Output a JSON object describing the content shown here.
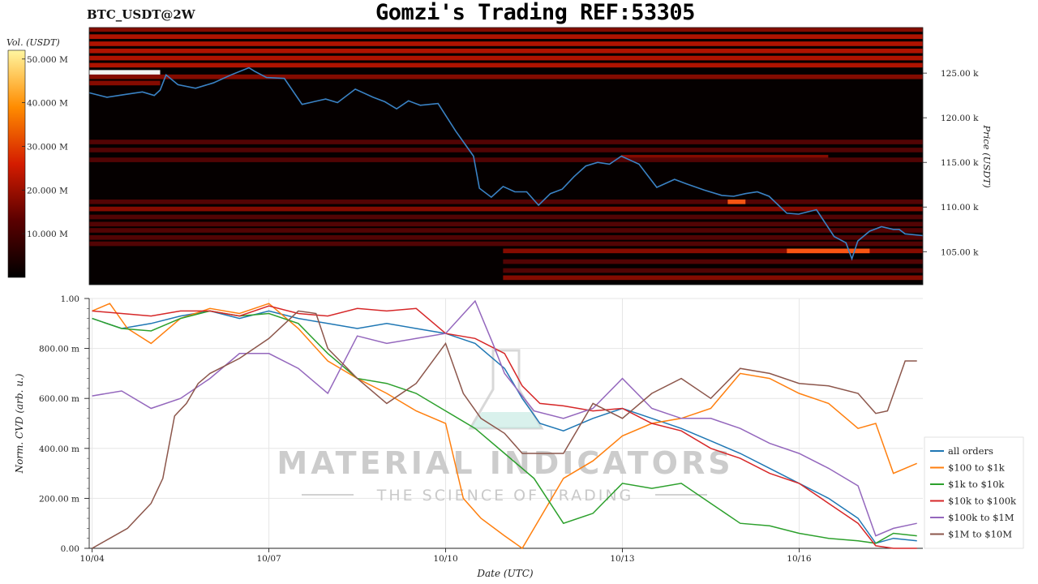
{
  "header": {
    "pair": "BTC_USDT@2W",
    "title": "Gomzi's Trading REF:53305"
  },
  "watermark": {
    "brand": "MATERIAL INDICATORS",
    "tagline": "THE SCIENCE OF TRADING"
  },
  "colors": {
    "heatmap_bg": "#050000",
    "heatmap_low": "#3a0000",
    "heatmap_mid": "#c81800",
    "heatmap_high": "#ff9a00",
    "price_line": "#3a82c4",
    "all_orders": "#1f77b4",
    "usd_100_1k": "#ff7f0e",
    "usd_1k_10k": "#2ca02c",
    "usd_10k_100k": "#d62728",
    "usd_100k_1m": "#9467bd",
    "usd_1m_10m": "#8c564b"
  },
  "chart_data": [
    {
      "type": "heatmap",
      "title": "BTC_USDT@2W",
      "ylabel": "Price (USDT)",
      "colorbar_label": "Vol. (USDT)",
      "colorbar_ticks": [
        "10.000 M",
        "20.000 M",
        "30.000 M",
        "40.000 M",
        "50.000 M"
      ],
      "colorbar_tick_values": [
        10,
        20,
        30,
        40,
        50
      ],
      "colorbar_range": [
        0,
        52
      ],
      "y_ticks": [
        "105.00 k",
        "110.00 k",
        "115.00 k",
        "120.00 k",
        "125.00 k"
      ],
      "y_tick_values": [
        105000,
        110000,
        115000,
        120000,
        125000
      ],
      "ylim": [
        101300,
        130100
      ],
      "x_range": [
        0,
        14.1
      ],
      "price_series": {
        "x": [
          0,
          0.3,
          0.6,
          0.9,
          1.1,
          1.2,
          1.3,
          1.5,
          1.8,
          2.1,
          2.4,
          2.7,
          2.8,
          3.0,
          3.3,
          3.6,
          3.8,
          4.0,
          4.2,
          4.5,
          4.8,
          5.0,
          5.2,
          5.4,
          5.6,
          5.9,
          6.2,
          6.5,
          6.6,
          6.8,
          7.0,
          7.2,
          7.4,
          7.6,
          7.8,
          8.0,
          8.2,
          8.4,
          8.6,
          8.8,
          9.0,
          9.3,
          9.6,
          9.9,
          10.1,
          10.4,
          10.7,
          10.9,
          11.1,
          11.3,
          11.5,
          11.8,
          12.0,
          12.3,
          12.6,
          12.8,
          12.9,
          13.0,
          13.2,
          13.4,
          13.6,
          13.7,
          13.8,
          14.1
        ],
        "y": [
          122800,
          122300,
          122600,
          122900,
          122500,
          123100,
          124800,
          123700,
          123300,
          123900,
          124800,
          125600,
          125200,
          124500,
          124400,
          121500,
          121800,
          122100,
          121700,
          123200,
          122300,
          121800,
          121000,
          121900,
          121400,
          121600,
          118500,
          115700,
          112100,
          111100,
          112300,
          111700,
          111700,
          110200,
          111500,
          112000,
          113400,
          114600,
          115000,
          114800,
          115700,
          114800,
          112200,
          113100,
          112600,
          111900,
          111300,
          111200,
          111500,
          111700,
          111200,
          109300,
          109200,
          109700,
          106700,
          106000,
          104200,
          106200,
          107300,
          107800,
          107500,
          107500,
          107000,
          106800
        ]
      },
      "bands": [
        {
          "price": 129800,
          "x": [
            0,
            14.1
          ],
          "level": 0.5
        },
        {
          "price": 129000,
          "x": [
            0,
            14.1
          ],
          "level": 0.55
        },
        {
          "price": 128200,
          "x": [
            0,
            14.1
          ],
          "level": 0.6
        },
        {
          "price": 127400,
          "x": [
            0,
            14.1
          ],
          "level": 0.62
        },
        {
          "price": 126600,
          "x": [
            0,
            14.1
          ],
          "level": 0.58
        },
        {
          "price": 125800,
          "x": [
            0,
            14.1
          ],
          "level": 0.6
        },
        {
          "price": 125000,
          "x": [
            0,
            1.2
          ],
          "level": 1.0
        },
        {
          "price": 124500,
          "x": [
            0,
            14.1
          ],
          "level": 0.5
        },
        {
          "price": 123800,
          "x": [
            0,
            1.2
          ],
          "level": 0.5
        },
        {
          "price": 117200,
          "x": [
            0,
            14.1
          ],
          "level": 0.3
        },
        {
          "price": 116300,
          "x": [
            0,
            14.1
          ],
          "level": 0.28
        },
        {
          "price": 115500,
          "x": [
            9.0,
            12.5
          ],
          "level": 0.45
        },
        {
          "price": 115200,
          "x": [
            0,
            14.1
          ],
          "level": 0.28
        },
        {
          "price": 110500,
          "x": [
            0,
            14.1
          ],
          "level": 0.35
        },
        {
          "price": 109700,
          "x": [
            0,
            14.1
          ],
          "level": 0.4
        },
        {
          "price": 110500,
          "x": [
            10.8,
            11.1
          ],
          "level": 0.85
        },
        {
          "price": 108800,
          "x": [
            0,
            14.1
          ],
          "level": 0.35
        },
        {
          "price": 108000,
          "x": [
            0,
            14.1
          ],
          "level": 0.3
        },
        {
          "price": 107300,
          "x": [
            0,
            14.1
          ],
          "level": 0.28
        },
        {
          "price": 106500,
          "x": [
            0,
            14.1
          ],
          "level": 0.25
        },
        {
          "price": 105800,
          "x": [
            0,
            14.1
          ],
          "level": 0.28
        },
        {
          "price": 105000,
          "x": [
            7.0,
            14.1
          ],
          "level": 0.45
        },
        {
          "price": 105000,
          "x": [
            11.8,
            13.2
          ],
          "level": 0.9
        },
        {
          "price": 103800,
          "x": [
            7.0,
            14.1
          ],
          "level": 0.35
        },
        {
          "price": 102800,
          "x": [
            7.0,
            14.1
          ],
          "level": 0.3
        },
        {
          "price": 102000,
          "x": [
            7.0,
            14.1
          ],
          "level": 0.4
        }
      ]
    },
    {
      "type": "line",
      "xlabel": "Date (UTC)",
      "ylabel": "Norm. CVD (arb. u.)",
      "x_ticks": [
        "10/04",
        "10/07",
        "10/10",
        "10/13",
        "10/16"
      ],
      "x_tick_values": [
        0,
        3,
        6,
        9,
        12
      ],
      "xlim": [
        -0.05,
        14.1
      ],
      "y_ticks": [
        "0.00",
        "200.00 m",
        "400.00 m",
        "600.00 m",
        "800.00 m",
        "1.00"
      ],
      "y_tick_values": [
        0,
        0.2,
        0.4,
        0.6,
        0.8,
        1.0
      ],
      "ylim": [
        0,
        1.0
      ],
      "grid": true,
      "legend_position": "lower-right",
      "series": [
        {
          "name": "all orders",
          "x": [
            0,
            0.5,
            1.0,
            1.5,
            2.0,
            2.5,
            3.0,
            3.5,
            4.0,
            4.5,
            5.0,
            5.5,
            6.0,
            6.5,
            7.0,
            7.3,
            7.6,
            8.0,
            8.5,
            9.0,
            9.5,
            10.0,
            10.5,
            11.0,
            11.5,
            12.0,
            12.5,
            13.0,
            13.3,
            13.6,
            14.0
          ],
          "y": [
            0.92,
            0.88,
            0.9,
            0.93,
            0.95,
            0.92,
            0.95,
            0.92,
            0.9,
            0.88,
            0.9,
            0.88,
            0.86,
            0.82,
            0.72,
            0.6,
            0.5,
            0.47,
            0.52,
            0.56,
            0.52,
            0.48,
            0.43,
            0.38,
            0.32,
            0.26,
            0.2,
            0.12,
            0.02,
            0.04,
            0.03
          ]
        },
        {
          "name": "$100 to $1k",
          "x": [
            0,
            0.3,
            0.6,
            1.0,
            1.5,
            2.0,
            2.5,
            3.0,
            3.5,
            4.0,
            4.5,
            5.0,
            5.5,
            6.0,
            6.3,
            6.6,
            7.0,
            7.3,
            7.6,
            8.0,
            8.5,
            9.0,
            9.5,
            10.0,
            10.5,
            11.0,
            11.5,
            12.0,
            12.5,
            13.0,
            13.3,
            13.6,
            14.0
          ],
          "y": [
            0.95,
            0.98,
            0.88,
            0.82,
            0.92,
            0.96,
            0.94,
            0.98,
            0.88,
            0.75,
            0.68,
            0.62,
            0.55,
            0.5,
            0.2,
            0.12,
            0.05,
            0.0,
            0.12,
            0.28,
            0.35,
            0.45,
            0.5,
            0.52,
            0.56,
            0.7,
            0.68,
            0.62,
            0.58,
            0.48,
            0.5,
            0.3,
            0.34
          ]
        },
        {
          "name": "$1k to $10k",
          "x": [
            0,
            0.5,
            1.0,
            1.5,
            2.0,
            2.5,
            3.0,
            3.5,
            4.0,
            4.5,
            5.0,
            5.5,
            6.0,
            6.5,
            7.0,
            7.5,
            8.0,
            8.5,
            9.0,
            9.5,
            10.0,
            10.5,
            11.0,
            11.5,
            12.0,
            12.5,
            13.0,
            13.3,
            13.6,
            14.0
          ],
          "y": [
            0.92,
            0.88,
            0.87,
            0.92,
            0.95,
            0.93,
            0.94,
            0.9,
            0.78,
            0.68,
            0.66,
            0.62,
            0.55,
            0.48,
            0.38,
            0.28,
            0.1,
            0.14,
            0.26,
            0.24,
            0.26,
            0.18,
            0.1,
            0.09,
            0.06,
            0.04,
            0.03,
            0.02,
            0.06,
            0.05
          ]
        },
        {
          "name": "$10k to $100k",
          "x": [
            0,
            0.5,
            1.0,
            1.5,
            2.0,
            2.5,
            3.0,
            3.5,
            4.0,
            4.5,
            5.0,
            5.5,
            6.0,
            6.5,
            7.0,
            7.3,
            7.6,
            8.0,
            8.5,
            9.0,
            9.5,
            10.0,
            10.5,
            11.0,
            11.5,
            12.0,
            12.5,
            13.0,
            13.3,
            13.6,
            14.0
          ],
          "y": [
            0.95,
            0.94,
            0.93,
            0.95,
            0.95,
            0.93,
            0.97,
            0.94,
            0.93,
            0.96,
            0.95,
            0.96,
            0.86,
            0.84,
            0.78,
            0.65,
            0.58,
            0.57,
            0.55,
            0.56,
            0.5,
            0.47,
            0.4,
            0.36,
            0.3,
            0.26,
            0.18,
            0.1,
            0.01,
            0.0,
            0.0
          ]
        },
        {
          "name": "$100k to $1M",
          "x": [
            0,
            0.5,
            1.0,
            1.5,
            2.0,
            2.5,
            3.0,
            3.5,
            4.0,
            4.5,
            5.0,
            5.5,
            6.0,
            6.5,
            6.8,
            7.0,
            7.5,
            8.0,
            8.5,
            9.0,
            9.5,
            10.0,
            10.5,
            11.0,
            11.5,
            12.0,
            12.5,
            13.0,
            13.3,
            13.6,
            14.0
          ],
          "y": [
            0.61,
            0.63,
            0.56,
            0.6,
            0.68,
            0.78,
            0.78,
            0.72,
            0.62,
            0.85,
            0.82,
            0.84,
            0.86,
            0.99,
            0.82,
            0.7,
            0.55,
            0.52,
            0.56,
            0.68,
            0.56,
            0.52,
            0.52,
            0.48,
            0.42,
            0.38,
            0.32,
            0.25,
            0.05,
            0.08,
            0.1
          ]
        },
        {
          "name": "$1M to $10M",
          "x": [
            0,
            0.3,
            0.6,
            1.0,
            1.2,
            1.4,
            1.6,
            1.8,
            2.0,
            2.5,
            3.0,
            3.5,
            3.8,
            4.0,
            4.5,
            5.0,
            5.5,
            6.0,
            6.3,
            6.6,
            7.0,
            7.3,
            7.6,
            8.0,
            8.5,
            9.0,
            9.5,
            10.0,
            10.5,
            11.0,
            11.5,
            12.0,
            12.5,
            13.0,
            13.3,
            13.5,
            13.8,
            14.0
          ],
          "y": [
            0.0,
            0.04,
            0.08,
            0.18,
            0.28,
            0.53,
            0.58,
            0.66,
            0.7,
            0.76,
            0.84,
            0.95,
            0.94,
            0.8,
            0.68,
            0.58,
            0.66,
            0.82,
            0.62,
            0.52,
            0.46,
            0.38,
            0.38,
            0.38,
            0.58,
            0.52,
            0.62,
            0.68,
            0.6,
            0.72,
            0.7,
            0.66,
            0.65,
            0.62,
            0.54,
            0.55,
            0.75,
            0.75
          ]
        }
      ]
    }
  ]
}
